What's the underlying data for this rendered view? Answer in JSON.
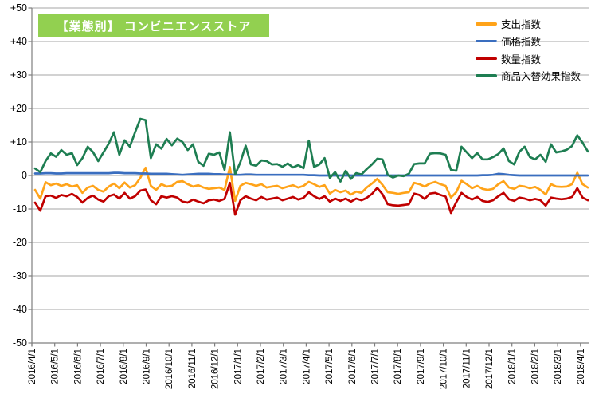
{
  "title": {
    "text": "【業態別】 コンビニエンスストア",
    "bg_color": "#92D050",
    "text_color": "#FFFFFF"
  },
  "axes": {
    "grid_color": "#A6A6A6",
    "axis_color": "#7F7F7F",
    "label_color": "#000000"
  },
  "chart_data": {
    "type": "line",
    "title": "【業態別】 コンビニエンスストア",
    "xlabel": "",
    "ylabel": "",
    "ylim": [
      -50,
      50
    ],
    "ytick_step": 10,
    "ytick_labels": [
      "+50",
      "+40",
      "+30",
      "+20",
      "+10",
      "0",
      "-10",
      "-20",
      "-30",
      "-40",
      "-50"
    ],
    "grid": "horizontal",
    "legend_position": "top-right",
    "x_unit": "weekly",
    "x_labels": [
      "2016/4/1",
      "2016/5/1",
      "2016/6/1",
      "2016/7/1",
      "2016/8/1",
      "2016/9/1",
      "2016/10/1",
      "2016/11/1",
      "2016/12/1",
      "2017/1/1",
      "2017/2/1",
      "2017/3/1",
      "2017/4/1",
      "2017/5/1",
      "2017/6/1",
      "2017/7/1",
      "2017/8/1",
      "2017/9/1",
      "2017/10/1",
      "2017/11/1",
      "2017/12/1",
      "2018/1/1",
      "2018/2/1",
      "2018/3/1",
      "2018/4/1"
    ],
    "series": [
      {
        "id": "expenditure-index",
        "name": "支出指数",
        "color": "#FFA319",
        "values": [
          -4.3,
          -6.9,
          -2.0,
          -2.9,
          -2.4,
          -3.1,
          -2.6,
          -3.3,
          -2.9,
          -5.2,
          -3.6,
          -3.1,
          -4.3,
          -4.8,
          -3.3,
          -2.4,
          -3.8,
          -2.1,
          -3.6,
          -2.9,
          -0.7,
          2.3,
          -3.1,
          -4.3,
          -2.6,
          -3.3,
          -3.1,
          -1.9,
          -1.7,
          -2.6,
          -3.3,
          -2.9,
          -3.6,
          -4.0,
          -3.8,
          -3.6,
          -4.3,
          2.5,
          -7.6,
          -3.1,
          -2.2,
          -2.6,
          -3.1,
          -2.6,
          -3.6,
          -3.3,
          -3.1,
          -3.8,
          -3.3,
          -2.9,
          -3.6,
          -3.1,
          -1.9,
          -2.6,
          -3.4,
          -2.9,
          -5.4,
          -4.3,
          -5.0,
          -4.5,
          -5.7,
          -4.8,
          -5.2,
          -3.6,
          -2.4,
          -1.0,
          -2.8,
          -5.0,
          -5.2,
          -5.5,
          -5.2,
          -5.0,
          -2.2,
          -2.6,
          -3.3,
          -2.4,
          -1.9,
          -2.6,
          -3.1,
          -6.6,
          -5.0,
          -1.6,
          -2.6,
          -3.8,
          -3.1,
          -4.0,
          -4.3,
          -4.0,
          -2.6,
          -1.7,
          -3.6,
          -4.0,
          -3.1,
          -3.3,
          -3.8,
          -3.4,
          -4.3,
          -5.7,
          -2.6,
          -3.3,
          -3.4,
          -3.3,
          -2.6,
          0.8,
          -2.6,
          -3.6
        ]
      },
      {
        "id": "price-index",
        "name": "価格指数",
        "color": "#3A6EBF",
        "values": [
          0.6,
          0.6,
          0.7,
          0.7,
          0.6,
          0.6,
          0.7,
          0.7,
          0.7,
          0.7,
          0.7,
          0.7,
          0.7,
          0.7,
          0.7,
          0.8,
          0.8,
          0.7,
          0.7,
          0.7,
          0.6,
          0.6,
          0.5,
          0.5,
          0.5,
          0.5,
          0.4,
          0.3,
          0.2,
          0.3,
          0.4,
          0.5,
          0.5,
          0.5,
          0.4,
          0.4,
          0.3,
          0.3,
          0.2,
          0.2,
          0.3,
          0.3,
          0.2,
          0.2,
          0.2,
          0.2,
          0.2,
          0.2,
          0.2,
          0.2,
          0.2,
          0.2,
          0.1,
          0.1,
          0.0,
          0.0,
          0.0,
          0.0,
          0.0,
          0.0,
          0.0,
          0.0,
          0.0,
          0.0,
          0.0,
          0.0,
          0.0,
          0.0,
          0.0,
          0.0,
          0.0,
          0.0,
          0.0,
          0.0,
          0.0,
          0.0,
          0.0,
          0.0,
          0.0,
          0.0,
          0.0,
          0.0,
          0.0,
          0.0,
          0.0,
          0.1,
          0.1,
          0.2,
          0.5,
          0.4,
          0.2,
          0.1,
          0.0,
          0.0,
          0.0,
          0.0,
          0.0,
          0.0,
          0.0,
          0.0,
          0.0,
          0.0,
          0.0,
          0.0,
          0.0,
          0.0
        ]
      },
      {
        "id": "quantity-index",
        "name": "数量指数",
        "color": "#C00000",
        "values": [
          -8.1,
          -10.5,
          -6.2,
          -6.0,
          -6.7,
          -5.8,
          -6.2,
          -5.5,
          -6.4,
          -8.1,
          -6.7,
          -6.0,
          -7.2,
          -7.8,
          -6.2,
          -5.7,
          -6.9,
          -5.2,
          -6.9,
          -6.2,
          -4.5,
          -4.2,
          -7.4,
          -8.6,
          -6.2,
          -6.6,
          -6.2,
          -6.6,
          -7.8,
          -8.1,
          -7.2,
          -7.8,
          -8.3,
          -7.4,
          -7.2,
          -7.6,
          -7.0,
          -2.2,
          -11.7,
          -7.4,
          -6.2,
          -6.9,
          -7.4,
          -6.4,
          -7.2,
          -6.9,
          -6.6,
          -7.4,
          -6.9,
          -6.4,
          -7.2,
          -6.7,
          -5.0,
          -6.2,
          -7.0,
          -6.2,
          -7.8,
          -6.9,
          -7.6,
          -6.9,
          -7.8,
          -6.9,
          -7.4,
          -6.7,
          -5.5,
          -3.7,
          -5.6,
          -8.6,
          -8.9,
          -9.0,
          -8.8,
          -8.6,
          -5.4,
          -5.8,
          -7.0,
          -5.4,
          -5.2,
          -5.8,
          -6.3,
          -11.2,
          -8.0,
          -5.2,
          -6.4,
          -7.2,
          -6.4,
          -7.6,
          -7.9,
          -7.4,
          -6.2,
          -5.2,
          -7.1,
          -7.6,
          -6.6,
          -6.9,
          -7.4,
          -7.0,
          -7.4,
          -9.0,
          -6.6,
          -6.9,
          -7.1,
          -6.9,
          -6.4,
          -3.8,
          -6.6,
          -7.4
        ]
      },
      {
        "id": "product-replacement-effect-index",
        "name": "商品入替効果指数",
        "color": "#1E7E52",
        "values": [
          2.1,
          1.0,
          4.3,
          6.6,
          5.6,
          7.6,
          6.2,
          6.7,
          3.1,
          5.2,
          8.6,
          7.0,
          4.3,
          6.9,
          9.5,
          12.9,
          6.2,
          10.5,
          8.6,
          12.9,
          16.9,
          16.5,
          5.2,
          9.3,
          8.0,
          10.9,
          9.0,
          11.0,
          10.0,
          7.6,
          9.3,
          4.1,
          2.9,
          6.5,
          6.2,
          6.9,
          1.7,
          12.9,
          0.3,
          4.0,
          8.9,
          3.3,
          2.9,
          4.5,
          4.3,
          3.3,
          3.4,
          2.6,
          3.6,
          2.4,
          3.1,
          2.2,
          10.4,
          2.6,
          3.3,
          5.2,
          -0.7,
          1.0,
          -1.8,
          1.4,
          -1.0,
          0.7,
          0.3,
          1.9,
          3.3,
          5.0,
          4.8,
          0.2,
          -0.6,
          0.0,
          -0.2,
          0.5,
          3.4,
          3.6,
          3.6,
          6.5,
          6.7,
          6.6,
          6.2,
          1.7,
          1.4,
          8.6,
          6.9,
          5.2,
          6.7,
          4.8,
          4.8,
          5.5,
          6.4,
          8.1,
          4.3,
          3.3,
          7.1,
          8.6,
          5.5,
          4.8,
          6.2,
          4.1,
          9.3,
          6.9,
          7.2,
          7.7,
          8.8,
          12.0,
          9.8,
          7.2
        ]
      }
    ]
  }
}
